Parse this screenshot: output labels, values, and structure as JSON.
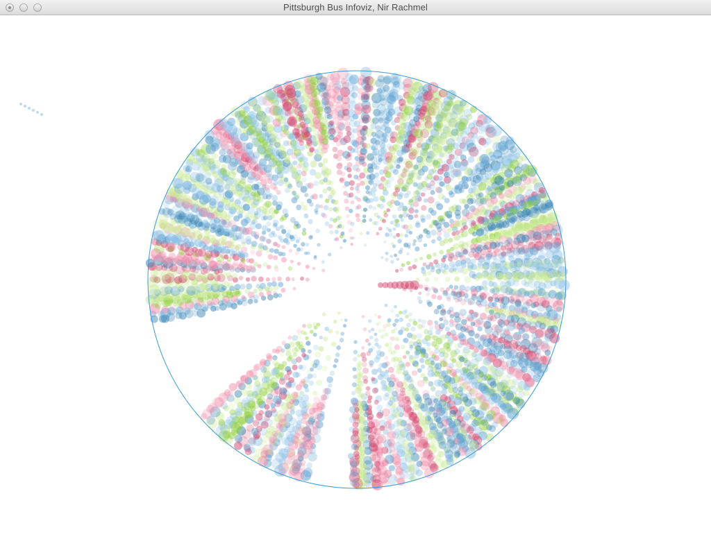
{
  "window": {
    "title": "Pittsburgh Bus Infoviz, Nir Rachmel"
  },
  "colors": {
    "ring": "#3a9bd5",
    "palette": [
      "#d2476f",
      "#3a86b4",
      "#8fcf3c",
      "#8ec3e8",
      "#f08ba8",
      "#5a9fd0",
      "#c7e98f"
    ]
  }
}
